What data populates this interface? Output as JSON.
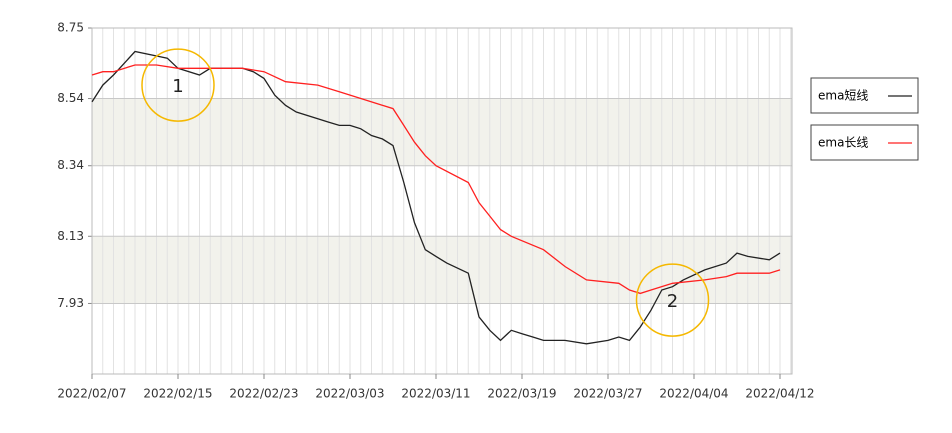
{
  "chart_data": {
    "type": "line",
    "xlim": [
      "2022/02/07",
      "2022/04/12"
    ],
    "xticks": [
      "2022/02/07",
      "2022/02/15",
      "2022/02/23",
      "2022/03/03",
      "2022/03/11",
      "2022/03/19",
      "2022/03/27",
      "2022/04/04",
      "2022/04/12"
    ],
    "ylim": [
      7.72,
      8.75
    ],
    "yticks": [
      7.93,
      8.13,
      8.34,
      8.54,
      8.75
    ],
    "grid": true,
    "series": [
      {
        "name": "ema短线",
        "color": "#222222",
        "x": [
          "2022/02/07",
          "2022/02/08",
          "2022/02/09",
          "2022/02/11",
          "2022/02/14",
          "2022/02/15",
          "2022/02/17",
          "2022/02/18",
          "2022/02/19",
          "2022/02/21",
          "2022/02/22",
          "2022/02/23",
          "2022/02/24",
          "2022/02/25",
          "2022/02/26",
          "2022/02/28",
          "2022/03/01",
          "2022/03/02",
          "2022/03/03",
          "2022/03/04",
          "2022/03/05",
          "2022/03/06",
          "2022/03/07",
          "2022/03/08",
          "2022/03/09",
          "2022/03/10",
          "2022/03/11",
          "2022/03/12",
          "2022/03/14",
          "2022/03/15",
          "2022/03/16",
          "2022/03/17",
          "2022/03/18",
          "2022/03/19",
          "2022/03/20",
          "2022/03/21",
          "2022/03/22",
          "2022/03/23",
          "2022/03/25",
          "2022/03/27",
          "2022/03/28",
          "2022/03/29",
          "2022/03/30",
          "2022/03/31",
          "2022/04/01",
          "2022/04/02",
          "2022/04/03",
          "2022/04/05",
          "2022/04/07",
          "2022/04/08",
          "2022/04/09",
          "2022/04/11",
          "2022/04/12"
        ],
        "values": [
          8.53,
          8.58,
          8.61,
          8.68,
          8.66,
          8.63,
          8.61,
          8.63,
          8.63,
          8.63,
          8.62,
          8.6,
          8.55,
          8.52,
          8.5,
          8.48,
          8.47,
          8.46,
          8.46,
          8.45,
          8.43,
          8.42,
          8.4,
          8.29,
          8.17,
          8.09,
          8.07,
          8.05,
          8.02,
          7.89,
          7.85,
          7.82,
          7.85,
          7.84,
          7.83,
          7.82,
          7.82,
          7.82,
          7.81,
          7.82,
          7.83,
          7.82,
          7.86,
          7.91,
          7.97,
          7.98,
          8.0,
          8.03,
          8.05,
          8.08,
          8.07,
          8.06,
          8.08
        ]
      },
      {
        "name": "ema长线",
        "color": "#ff2020",
        "x": [
          "2022/02/07",
          "2022/02/08",
          "2022/02/09",
          "2022/02/11",
          "2022/02/13",
          "2022/02/15",
          "2022/02/18",
          "2022/02/21",
          "2022/02/23",
          "2022/02/25",
          "2022/02/28",
          "2022/03/02",
          "2022/03/04",
          "2022/03/06",
          "2022/03/07",
          "2022/03/08",
          "2022/03/09",
          "2022/03/10",
          "2022/03/11",
          "2022/03/14",
          "2022/03/15",
          "2022/03/16",
          "2022/03/17",
          "2022/03/18",
          "2022/03/21",
          "2022/03/23",
          "2022/03/25",
          "2022/03/28",
          "2022/03/29",
          "2022/03/30",
          "2022/03/31",
          "2022/04/02",
          "2022/04/05",
          "2022/04/07",
          "2022/04/08",
          "2022/04/11",
          "2022/04/12"
        ],
        "values": [
          8.61,
          8.62,
          8.62,
          8.64,
          8.64,
          8.63,
          8.63,
          8.63,
          8.62,
          8.59,
          8.58,
          8.56,
          8.54,
          8.52,
          8.51,
          8.46,
          8.41,
          8.37,
          8.34,
          8.29,
          8.23,
          8.19,
          8.15,
          8.13,
          8.09,
          8.04,
          8.0,
          7.99,
          7.97,
          7.96,
          7.97,
          7.99,
          8.0,
          8.01,
          8.02,
          8.02,
          8.03
        ]
      }
    ],
    "annotations": [
      {
        "label": "1",
        "x": "2022/02/15",
        "y": 8.58
      },
      {
        "label": "2",
        "x": "2022/04/02",
        "y": 7.94
      }
    ]
  }
}
